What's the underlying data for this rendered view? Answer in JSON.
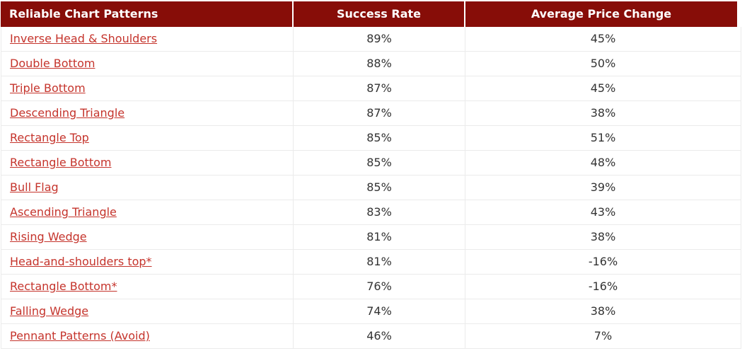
{
  "colors": {
    "header_bg": "#870d08",
    "header_text": "#ffffff",
    "link_red": "#c5342c",
    "grid_line": "#ebebeb",
    "value_text": "#333333"
  },
  "table": {
    "columns": [
      {
        "label": "Reliable Chart Patterns",
        "align": "left"
      },
      {
        "label": "Success Rate",
        "align": "center"
      },
      {
        "label": "Average Price Change",
        "align": "center"
      }
    ],
    "rows": [
      {
        "pattern": "Inverse Head & Shoulders",
        "success_rate": "89%",
        "avg_price_change": "45%"
      },
      {
        "pattern": "Double Bottom",
        "success_rate": "88%",
        "avg_price_change": "50%"
      },
      {
        "pattern": "Triple Bottom",
        "success_rate": "87%",
        "avg_price_change": "45%"
      },
      {
        "pattern": "Descending Triangle",
        "success_rate": "87%",
        "avg_price_change": "38%"
      },
      {
        "pattern": "Rectangle Top",
        "success_rate": "85%",
        "avg_price_change": "51%"
      },
      {
        "pattern": "Rectangle Bottom",
        "success_rate": "85%",
        "avg_price_change": "48%"
      },
      {
        "pattern": "Bull Flag",
        "success_rate": "85%",
        "avg_price_change": "39%"
      },
      {
        "pattern": "Ascending Triangle",
        "success_rate": "83%",
        "avg_price_change": "43%"
      },
      {
        "pattern": "Rising Wedge",
        "success_rate": "81%",
        "avg_price_change": "38%"
      },
      {
        "pattern": "Head-and-shoulders top*",
        "success_rate": "81%",
        "avg_price_change": "-16%"
      },
      {
        "pattern": "Rectangle Bottom*",
        "success_rate": "76%",
        "avg_price_change": "-16%"
      },
      {
        "pattern": "Falling Wedge",
        "success_rate": "74%",
        "avg_price_change": "38%"
      },
      {
        "pattern": "Pennant Patterns (Avoid)",
        "success_rate": "46%",
        "avg_price_change": "7%"
      }
    ]
  },
  "chart_data": {
    "type": "table",
    "title": "Reliable Chart Patterns",
    "columns": [
      "Reliable Chart Patterns",
      "Success Rate",
      "Average Price Change"
    ],
    "categories": [
      "Inverse Head & Shoulders",
      "Double Bottom",
      "Triple Bottom",
      "Descending Triangle",
      "Rectangle Top",
      "Rectangle Bottom",
      "Bull Flag",
      "Ascending Triangle",
      "Rising Wedge",
      "Head-and-shoulders top*",
      "Rectangle Bottom*",
      "Falling Wedge",
      "Pennant Patterns (Avoid)"
    ],
    "series": [
      {
        "name": "Success Rate (%)",
        "values": [
          89,
          88,
          87,
          87,
          85,
          85,
          85,
          83,
          81,
          81,
          76,
          74,
          46
        ]
      },
      {
        "name": "Average Price Change (%)",
        "values": [
          45,
          50,
          45,
          38,
          51,
          48,
          39,
          43,
          38,
          -16,
          -16,
          38,
          7
        ]
      }
    ]
  }
}
